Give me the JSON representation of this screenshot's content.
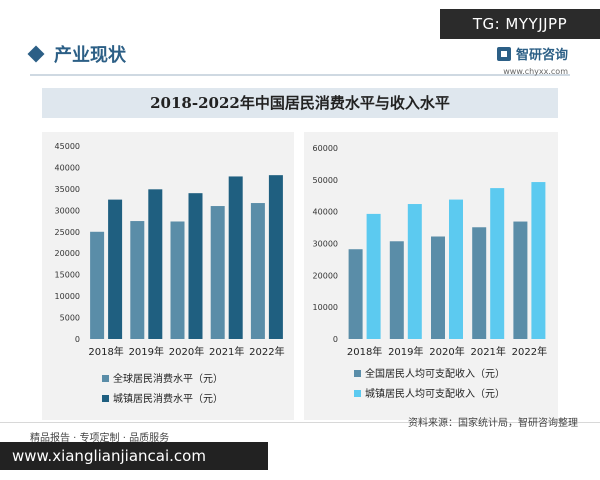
{
  "tag": "TG: MYYJJPP",
  "header": {
    "title": "产业现状"
  },
  "brand": {
    "name": "智研咨询",
    "url": "www.chyxx.com"
  },
  "footer": {
    "left": "精品报告 · 专项定制 · 品质服务",
    "source": "资料来源：国家统计局，智研咨询整理",
    "url_overlay": "www.xianglianjiancai.com"
  },
  "colors": {
    "light_blue": "#6aa3c0",
    "dark_blue": "#1f5f80",
    "light_teal": "#5a8da8",
    "cyan": "#5ccaf0"
  },
  "chart_data": [
    {
      "type": "bar",
      "title": "2018-2022年中国居民消费水平与收入水平",
      "categories": [
        "2018年",
        "2019年",
        "2020年",
        "2021年",
        "2022年"
      ],
      "ylim": [
        0,
        45000
      ],
      "yticks": [
        "0",
        "5000",
        "10000",
        "15000",
        "20000",
        "25000",
        "30000",
        "35000",
        "40000",
        "45000"
      ],
      "series": [
        {
          "name": "全球居民消费水平（元）",
          "values": [
            25000,
            27500,
            27400,
            31000,
            31700
          ]
        },
        {
          "name": "城镇居民消费水平（元）",
          "values": [
            32500,
            34900,
            34000,
            37900,
            38200
          ]
        }
      ],
      "grid": false,
      "legend": "bottom"
    },
    {
      "type": "bar",
      "categories": [
        "2018年",
        "2019年",
        "2020年",
        "2021年",
        "2022年"
      ],
      "ylim": [
        0,
        60000
      ],
      "yticks": [
        "0",
        "10000",
        "20000",
        "30000",
        "40000",
        "50000",
        "60000"
      ],
      "series": [
        {
          "name": "全国居民人均可支配收入（元）",
          "values": [
            28200,
            30700,
            32200,
            35100,
            36900
          ]
        },
        {
          "name": "城镇居民人均可支配收入（元）",
          "values": [
            39300,
            42400,
            43800,
            47400,
            49300
          ]
        }
      ],
      "grid": false,
      "legend": "bottom"
    }
  ]
}
